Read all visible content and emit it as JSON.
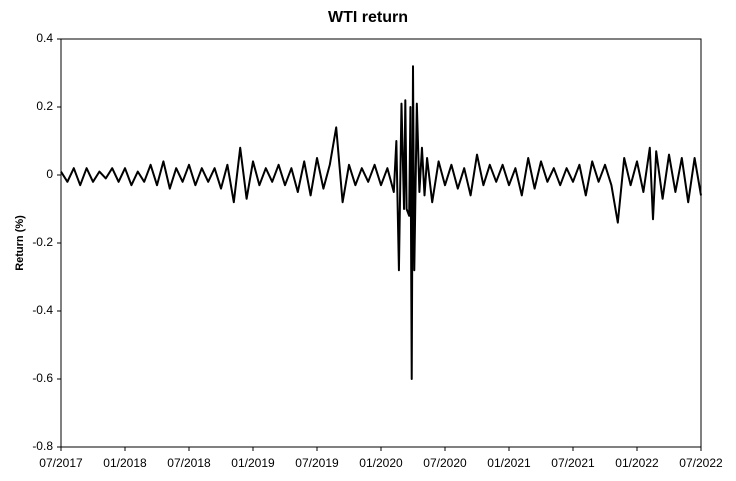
{
  "chart_data": {
    "type": "line",
    "title": "WTI return",
    "y_label": "Return (%)",
    "x": [
      2017.5,
      2017.55,
      2017.6,
      2017.65,
      2017.7,
      2017.75,
      2017.8,
      2017.85,
      2017.9,
      2017.95,
      2018.0,
      2018.05,
      2018.1,
      2018.15,
      2018.2,
      2018.25,
      2018.3,
      2018.35,
      2018.4,
      2018.45,
      2018.5,
      2018.55,
      2018.6,
      2018.65,
      2018.7,
      2018.75,
      2018.8,
      2018.85,
      2018.9,
      2018.95,
      2019.0,
      2019.05,
      2019.1,
      2019.15,
      2019.2,
      2019.25,
      2019.3,
      2019.35,
      2019.4,
      2019.45,
      2019.5,
      2019.55,
      2019.6,
      2019.65,
      2019.7,
      2019.75,
      2019.8,
      2019.85,
      2019.9,
      2019.95,
      2020.0,
      2020.05,
      2020.1,
      2020.12,
      2020.14,
      2020.16,
      2020.18,
      2020.19,
      2020.2,
      2020.22,
      2020.23,
      2020.24,
      2020.25,
      2020.26,
      2020.28,
      2020.3,
      2020.32,
      2020.34,
      2020.36,
      2020.4,
      2020.45,
      2020.5,
      2020.55,
      2020.6,
      2020.65,
      2020.7,
      2020.75,
      2020.8,
      2020.85,
      2020.9,
      2020.95,
      2021.0,
      2021.05,
      2021.1,
      2021.15,
      2021.2,
      2021.25,
      2021.3,
      2021.35,
      2021.4,
      2021.45,
      2021.5,
      2021.55,
      2021.6,
      2021.65,
      2021.7,
      2021.75,
      2021.8,
      2021.85,
      2021.9,
      2021.95,
      2022.0,
      2022.05,
      2022.1,
      2022.125,
      2022.15,
      2022.2,
      2022.25,
      2022.3,
      2022.35,
      2022.4,
      2022.45,
      2022.5
    ],
    "series": [
      {
        "color": "#000000",
        "values": [
          0.01,
          -0.02,
          0.02,
          -0.03,
          0.02,
          -0.02,
          0.01,
          -0.01,
          0.02,
          -0.02,
          0.02,
          -0.03,
          0.01,
          -0.02,
          0.03,
          -0.03,
          0.04,
          -0.04,
          0.02,
          -0.02,
          0.03,
          -0.03,
          0.02,
          -0.02,
          0.02,
          -0.04,
          0.03,
          -0.08,
          0.08,
          -0.07,
          0.04,
          -0.03,
          0.02,
          -0.02,
          0.03,
          -0.03,
          0.02,
          -0.05,
          0.04,
          -0.06,
          0.05,
          -0.04,
          0.03,
          0.14,
          -0.08,
          0.03,
          -0.03,
          0.02,
          -0.02,
          0.03,
          -0.03,
          0.02,
          -0.05,
          0.1,
          -0.28,
          0.21,
          -0.1,
          0.22,
          -0.1,
          -0.12,
          0.2,
          -0.6,
          0.32,
          -0.28,
          0.21,
          -0.05,
          0.08,
          -0.06,
          0.05,
          -0.08,
          0.04,
          -0.03,
          0.03,
          -0.04,
          0.02,
          -0.06,
          0.06,
          -0.03,
          0.03,
          -0.02,
          0.03,
          -0.03,
          0.02,
          -0.06,
          0.05,
          -0.04,
          0.04,
          -0.02,
          0.02,
          -0.03,
          0.02,
          -0.02,
          0.03,
          -0.06,
          0.04,
          -0.02,
          0.03,
          -0.03,
          -0.14,
          0.05,
          -0.03,
          0.04,
          -0.05,
          0.08,
          -0.13,
          0.07,
          -0.07,
          0.06,
          -0.05,
          0.05,
          -0.08,
          0.05,
          -0.06
        ]
      }
    ],
    "xlim": [
      2017.5,
      2022.5
    ],
    "xticks": [
      {
        "value": 2017.5,
        "label": "07/2017"
      },
      {
        "value": 2018.0,
        "label": "01/2018"
      },
      {
        "value": 2018.5,
        "label": "07/2018"
      },
      {
        "value": 2019.0,
        "label": "01/2019"
      },
      {
        "value": 2019.5,
        "label": "07/2019"
      },
      {
        "value": 2020.0,
        "label": "01/2020"
      },
      {
        "value": 2020.5,
        "label": "07/2020"
      },
      {
        "value": 2021.0,
        "label": "01/2021"
      },
      {
        "value": 2021.5,
        "label": "07/2021"
      },
      {
        "value": 2022.0,
        "label": "01/2022"
      },
      {
        "value": 2022.5,
        "label": "07/2022"
      }
    ],
    "ylim": [
      -0.8,
      0.4
    ],
    "yticks": [
      0.4,
      0.2,
      0,
      -0.2,
      -0.4,
      -0.6,
      -0.8
    ],
    "grid": false
  }
}
